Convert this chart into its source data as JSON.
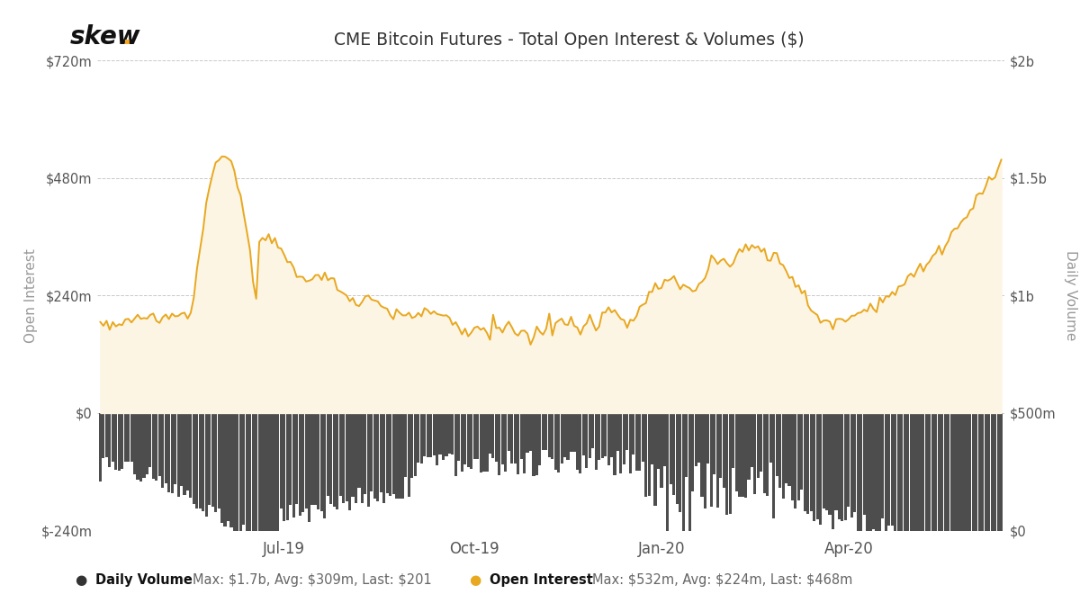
{
  "title": "CME Bitcoin Futures - Total Open Interest & Volumes ($)",
  "skew_text": "skew.",
  "ylabel_left": "Open Interest",
  "ylabel_right": "Daily Volume",
  "left_yticks": [
    "$-240m",
    "$0",
    "$240m",
    "$480m",
    "$720m"
  ],
  "left_yvalues": [
    -240,
    0,
    240,
    480,
    720
  ],
  "right_yticks": [
    "$0",
    "$500m",
    "$1b",
    "$1.5b",
    "$2b"
  ],
  "right_yvalues": [
    0,
    500,
    1000,
    1500,
    2000
  ],
  "xtick_labels": [
    "Jul-19",
    "Oct-19",
    "Jan-20",
    "Apr-20"
  ],
  "background_color": "#ffffff",
  "bar_color": "#3a3a3a",
  "fill_color": "#fdf5e4",
  "line_color": "#e8a820",
  "grid_color": "#bbbbbb",
  "legend_text_1": "Daily Volume",
  "legend_stats_1": "Max: $1.7b, Avg: $309m, Last: $201",
  "legend_text_2": "Open Interest",
  "legend_stats_2": "Max: $532m, Avg: $224m, Last: $468m",
  "legend_dot_color_1": "#333333",
  "legend_dot_color_2": "#e8a820",
  "ylim_left": [
    -240,
    720
  ],
  "ylim_right": [
    0,
    2000
  ],
  "num_points": 290
}
